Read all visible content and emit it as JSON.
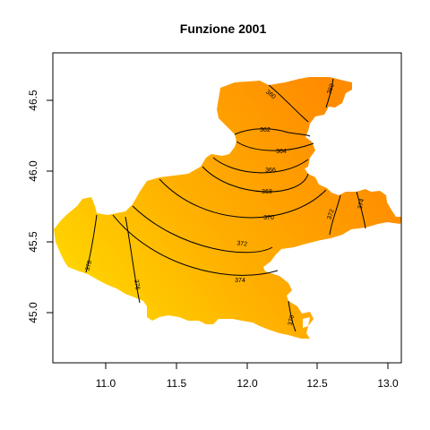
{
  "title": "Funzione 2001",
  "colors": {
    "low": "#ffd700",
    "mid": "#ffb000",
    "high": "#ff8c00",
    "contour": "#000000",
    "frame": "#000000",
    "background": "#ffffff"
  },
  "chart_data": {
    "type": "heatmap",
    "title": "Funzione 2001",
    "xlabel": "",
    "ylabel": "",
    "xlim": [
      10.65,
      13.1
    ],
    "ylim": [
      44.65,
      46.82
    ],
    "x_ticks": [
      "11.0",
      "11.5",
      "12.0",
      "12.5",
      "13.0"
    ],
    "y_ticks": [
      "45.0",
      "45.5",
      "46.0",
      "46.5"
    ],
    "contour_levels": [
      "360",
      "362",
      "364",
      "366",
      "368",
      "370",
      "372",
      "374",
      "376",
      "378"
    ],
    "color_scale": "heat colors: yellow (high values, southwest) to dark orange (low values, northeast)",
    "grid": false,
    "legend": "none"
  }
}
